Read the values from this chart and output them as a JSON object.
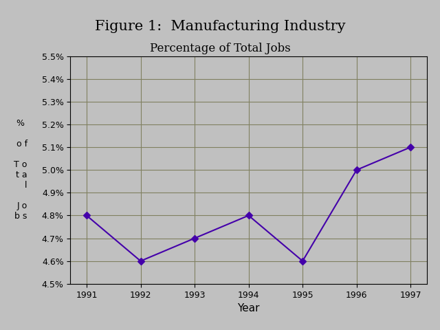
{
  "title_line1": "Figure 1:  Manufacturing Industry",
  "title_line2": "Percentage of Total Jobs",
  "xlabel": "Year",
  "years": [
    1991,
    1992,
    1993,
    1994,
    1995,
    1996,
    1997
  ],
  "values": [
    0.048,
    0.046,
    0.047,
    0.048,
    0.046,
    0.05,
    0.051
  ],
  "ylim": [
    0.045,
    0.055
  ],
  "yticks": [
    0.045,
    0.046,
    0.047,
    0.048,
    0.049,
    0.05,
    0.051,
    0.052,
    0.053,
    0.054,
    0.055
  ],
  "line_color": "#4400aa",
  "marker": "D",
  "marker_size": 5,
  "background_color": "#c0c0c0",
  "plot_bg_color": "#c0c0c0",
  "grid_color": "#808060",
  "title_fontsize": 15,
  "subtitle_fontsize": 12,
  "xlabel_fontsize": 11,
  "tick_fontsize": 9,
  "ylabel_text": "% \n\no f\n\nT o\nt a\nl\n\nJ o\nb s"
}
